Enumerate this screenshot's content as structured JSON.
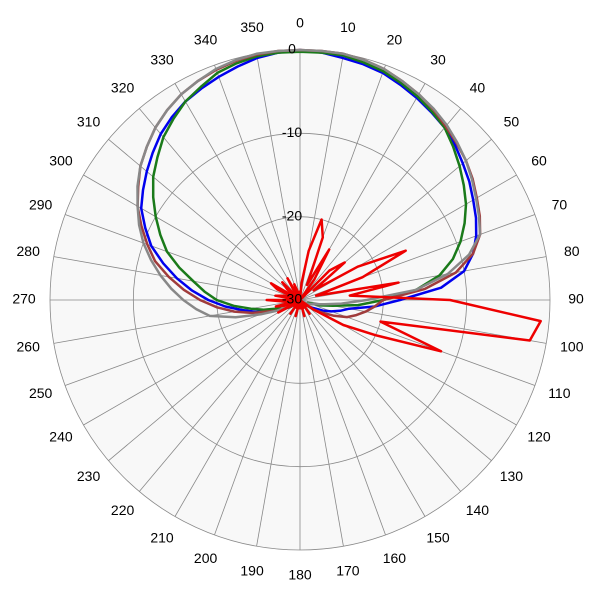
{
  "chart_data": {
    "type": "polar",
    "x": [
      0,
      5,
      10,
      15,
      20,
      25,
      30,
      35,
      40,
      45,
      50,
      55,
      60,
      65,
      70,
      75,
      80,
      85,
      90,
      95,
      100,
      105,
      110,
      115,
      120,
      125,
      130,
      135,
      140,
      145,
      150,
      155,
      160,
      165,
      170,
      175,
      180,
      185,
      190,
      195,
      200,
      205,
      210,
      215,
      220,
      225,
      230,
      235,
      240,
      245,
      250,
      255,
      260,
      265,
      270,
      275,
      280,
      285,
      290,
      295,
      300,
      305,
      310,
      315,
      320,
      325,
      330,
      335,
      340,
      345,
      350,
      355
    ],
    "xticks": [
      0,
      10,
      20,
      30,
      40,
      50,
      60,
      70,
      80,
      90,
      100,
      110,
      120,
      130,
      140,
      150,
      160,
      170,
      180,
      190,
      200,
      210,
      220,
      230,
      240,
      250,
      260,
      270,
      280,
      290,
      300,
      310,
      320,
      330,
      340,
      350
    ],
    "ylim": [
      -30,
      0
    ],
    "yticks": [
      0,
      -10,
      -20,
      -30
    ],
    "grid": true,
    "series": [
      {
        "color": "#0000ee",
        "values": [
          0,
          -0.2,
          -0.5,
          -0.7,
          -1,
          -1.5,
          -2,
          -2.5,
          -3,
          -3.7,
          -4.5,
          -5.2,
          -6,
          -6.7,
          -7.5,
          -8.5,
          -10,
          -13,
          -18,
          -21,
          -24,
          -25,
          -26,
          -27,
          -28,
          -28.5,
          -29,
          -29,
          -29,
          -29,
          -29,
          -29,
          -29,
          -29,
          -29,
          -29,
          -29,
          -29,
          -29,
          -29,
          -29,
          -29,
          -29,
          -29,
          -29,
          -29,
          -29,
          -28.5,
          -28,
          -27,
          -26,
          -24.5,
          -23,
          -21,
          -19,
          -17,
          -15,
          -13,
          -11,
          -9.5,
          -8,
          -7,
          -6,
          -5,
          -4,
          -3.2,
          -2.5,
          -2,
          -1.5,
          -1,
          -0.5,
          -0.2
        ]
      },
      {
        "color": "#1a7a1a",
        "values": [
          -0.2,
          -0.2,
          -0.2,
          -0.5,
          -0.8,
          -1.3,
          -1.8,
          -2.4,
          -3,
          -4,
          -5,
          -6,
          -7,
          -8.2,
          -9.5,
          -11,
          -13,
          -16,
          -20,
          -23,
          -26,
          -27.5,
          -29,
          -29,
          -29,
          -29,
          -29,
          -29,
          -29,
          -29,
          -29,
          -29,
          -29,
          -29,
          -29,
          -29,
          -29,
          -29,
          -29,
          -29,
          -29,
          -29,
          -29,
          -29,
          -29,
          -29,
          -29,
          -28.5,
          -28,
          -27.5,
          -27,
          -25.5,
          -24,
          -22,
          -20,
          -18.5,
          -17,
          -15,
          -13,
          -11.5,
          -10,
          -8.5,
          -7,
          -5.8,
          -4.5,
          -3.5,
          -2.5,
          -1.8,
          -1,
          -0.6,
          -0.3,
          -0.2
        ]
      },
      {
        "color": "#a03c3c",
        "values": [
          0,
          0,
          0,
          -0.2,
          -0.5,
          -1,
          -1.5,
          -2.1,
          -2.8,
          -3.4,
          -4,
          -4.7,
          -5.5,
          -6.2,
          -7,
          -8.5,
          -11,
          -15,
          -20,
          -21,
          -22,
          -23,
          -24,
          -25.5,
          -27,
          -28,
          -29,
          -29,
          -29,
          -29,
          -29,
          -29,
          -29,
          -29,
          -29,
          -29,
          -29,
          -29,
          -29,
          -29,
          -29,
          -29,
          -29,
          -29,
          -29,
          -29,
          -29,
          -28.5,
          -28,
          -27,
          -26,
          -24,
          -22,
          -20,
          -18,
          -16,
          -14,
          -12,
          -10.5,
          -9,
          -7.5,
          -6.3,
          -5,
          -4,
          -3,
          -2.2,
          -1.5,
          -1,
          -0.6,
          -0.3,
          -0.1,
          0
        ]
      },
      {
        "color": "#888888",
        "values": [
          0,
          0,
          0,
          -0.2,
          -0.5,
          -1,
          -1.5,
          -2,
          -2.6,
          -3.3,
          -4,
          -4.8,
          -5.6,
          -6.3,
          -7,
          -9,
          -12,
          -16,
          -22,
          -25,
          -27,
          -28,
          -28.5,
          -29,
          -29,
          -29,
          -29.5,
          -29.5,
          -29.5,
          -29.5,
          -29.5,
          -29.5,
          -29.5,
          -29.5,
          -29.5,
          -29.5,
          -29.5,
          -29.5,
          -29.5,
          -29.5,
          -29.5,
          -29.5,
          -29.5,
          -29.5,
          -29.5,
          -29.5,
          -29.5,
          -29,
          -28.5,
          -27,
          -25,
          -22,
          -19,
          -17.5,
          -16,
          -14.5,
          -13,
          -11.5,
          -10,
          -8.7,
          -7.5,
          -6.2,
          -5,
          -4,
          -3,
          -2.2,
          -1.5,
          -1,
          -0.5,
          -0.2,
          0,
          0
        ]
      },
      {
        "color": "#ee0000",
        "values": [
          -30,
          -28,
          -24,
          -20,
          -22,
          -28,
          -23,
          -27,
          -30,
          -25,
          -23,
          -28,
          -22,
          -16,
          -22,
          -28,
          -18,
          -24,
          -12,
          -1,
          -2,
          -20,
          -12,
          -20,
          -24,
          -28,
          -30,
          -29,
          -30,
          -28,
          -30,
          -29,
          -30,
          -28,
          -30,
          -29,
          -30,
          -29,
          -30,
          -28,
          -30,
          -29,
          -30,
          -28,
          -30,
          -29,
          -30,
          -29,
          -27,
          -30,
          -28,
          -27,
          -30,
          -28,
          -26,
          -30,
          -27,
          -28,
          -30,
          -27,
          -26,
          -30,
          -28,
          -27,
          -30,
          -29,
          -27,
          -30,
          -28,
          -29,
          -30,
          -29
        ]
      }
    ]
  }
}
